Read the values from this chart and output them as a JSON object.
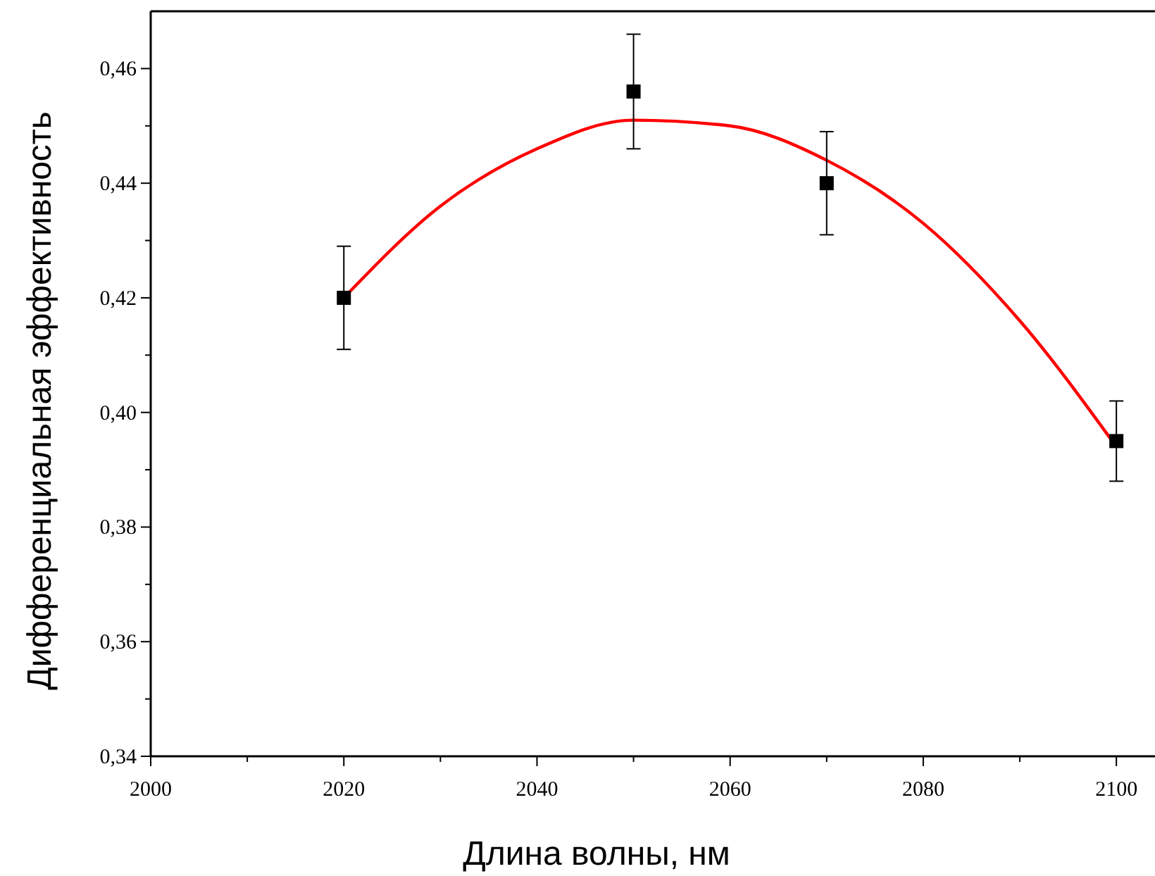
{
  "chart_data": {
    "type": "scatter",
    "xlabel": "Длина волны, нм",
    "ylabel": "Дифференциальная эффективность",
    "xlim": [
      2000,
      2104
    ],
    "xticks": [
      2000,
      2020,
      2040,
      2060,
      2080,
      2100
    ],
    "ylim": [
      0.34,
      0.47
    ],
    "yticks": [
      {
        "value": 0.34,
        "label": "0,34"
      },
      {
        "value": 0.36,
        "label": "0,36"
      },
      {
        "value": 0.38,
        "label": "0,38"
      },
      {
        "value": 0.4,
        "label": "0,40"
      },
      {
        "value": 0.42,
        "label": "0,42"
      },
      {
        "value": 0.44,
        "label": "0,44"
      },
      {
        "value": 0.46,
        "label": "0,46"
      }
    ],
    "grid": false,
    "series": [
      {
        "type": "line",
        "color": "#ff0000",
        "marker": "none",
        "line_style": "solid",
        "x": [
          2020,
          2030,
          2040,
          2050,
          2060,
          2070,
          2080,
          2090,
          2100
        ],
        "values": [
          0.42,
          0.436,
          0.446,
          0.451,
          0.45,
          0.444,
          0.433,
          0.416,
          0.394
        ]
      },
      {
        "color": "#000000",
        "marker": "square",
        "x": [
          2020,
          2050,
          2070,
          2100
        ],
        "values": [
          0.42,
          0.456,
          0.44,
          0.395
        ],
        "errors": [
          [
            0.411,
            0.429
          ],
          [
            0.446,
            0.466
          ],
          [
            0.431,
            0.449
          ],
          [
            0.388,
            0.402
          ]
        ]
      }
    ]
  }
}
